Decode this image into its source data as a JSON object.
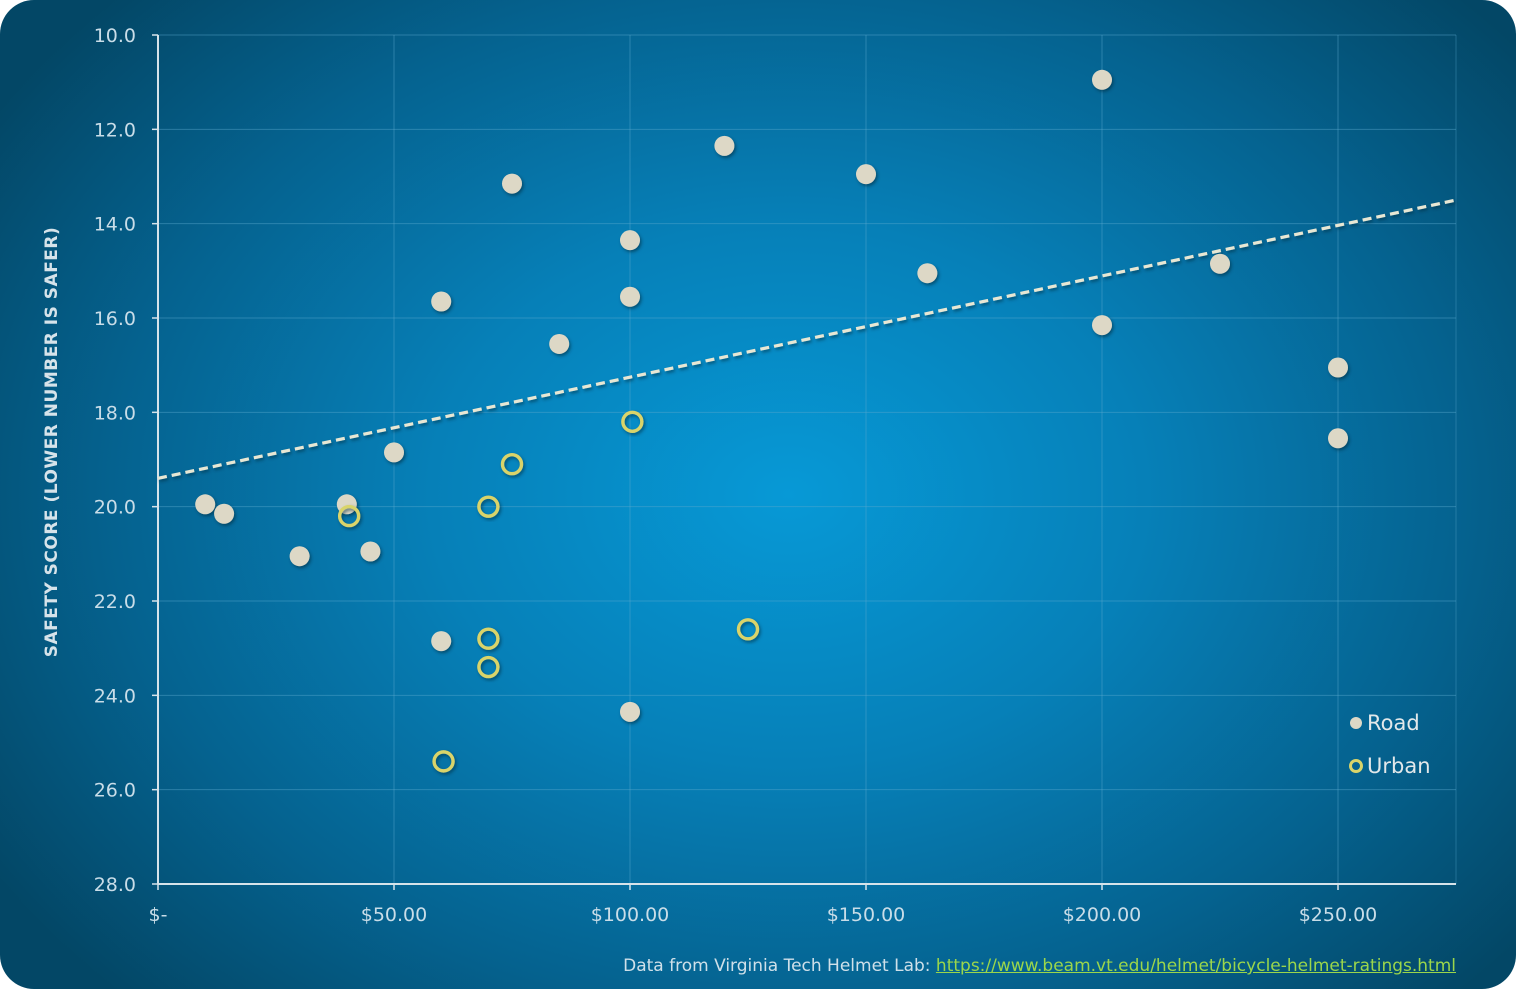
{
  "chart_data": {
    "type": "scatter",
    "title": "",
    "xlabel": "",
    "ylabel": "SAFETY SCORE (LOWER NUMBER IS SAFER)",
    "xlim": [
      0,
      275
    ],
    "ylim": [
      10,
      28
    ],
    "y_inverted": true,
    "x_ticks": [
      0,
      50,
      100,
      150,
      200,
      250
    ],
    "x_tick_labels": [
      "$-",
      "$50.00",
      "$100.00",
      "$150.00",
      "$200.00",
      "$250.00"
    ],
    "y_ticks": [
      10,
      12,
      14,
      16,
      18,
      20,
      22,
      24,
      26,
      28
    ],
    "y_tick_labels": [
      "10.0",
      "12.0",
      "14.0",
      "16.0",
      "18.0",
      "20.0",
      "22.0",
      "24.0",
      "26.0",
      "28.0"
    ],
    "grid": true,
    "legend": "bottom-right",
    "series": [
      {
        "name": "Road",
        "marker": "filled-circle",
        "color": "#ddd8c6",
        "points": [
          [
            10,
            19.95
          ],
          [
            14,
            20.15
          ],
          [
            30,
            21.05
          ],
          [
            40,
            19.95
          ],
          [
            45,
            20.95
          ],
          [
            50,
            18.85
          ],
          [
            60,
            15.65
          ],
          [
            60,
            22.85
          ],
          [
            75,
            13.15
          ],
          [
            85,
            16.55
          ],
          [
            100,
            14.35
          ],
          [
            100,
            15.55
          ],
          [
            100,
            24.35
          ],
          [
            120,
            12.35
          ],
          [
            150,
            12.95
          ],
          [
            163,
            15.05
          ],
          [
            200,
            10.95
          ],
          [
            200,
            16.15
          ],
          [
            225,
            14.85
          ],
          [
            250,
            17.05
          ],
          [
            250,
            18.55
          ]
        ]
      },
      {
        "name": "Urban",
        "marker": "hollow-circle",
        "color": "#d9d46a",
        "points": [
          [
            40.5,
            20.2
          ],
          [
            60.5,
            25.4
          ],
          [
            70,
            20.0
          ],
          [
            70,
            22.8
          ],
          [
            70,
            23.4
          ],
          [
            75,
            19.1
          ],
          [
            100.5,
            18.2
          ],
          [
            125,
            22.6
          ]
        ]
      }
    ],
    "trendline": {
      "style": "dashed",
      "color": "#e7e7d4",
      "from": [
        0,
        19.4
      ],
      "to": [
        275,
        13.5
      ]
    }
  },
  "footer": {
    "source_text": "Data from Virginia Tech Helmet Lab: ",
    "source_link": "https://www.beam.vt.edu/helmet/bicycle-helmet-ratings.html"
  }
}
